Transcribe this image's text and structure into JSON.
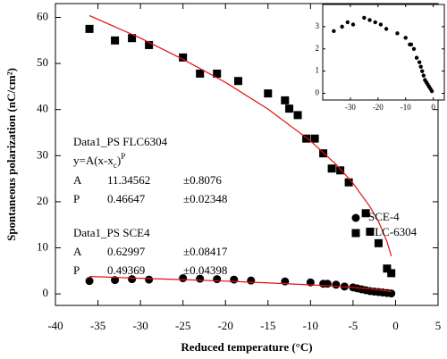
{
  "chart_data": [
    {
      "type": "scatter",
      "xlabel": "Reduced temperature (°C)",
      "ylabel": "Spontaneous polarization (nC/cm²)",
      "xlim": [
        -40,
        5
      ],
      "ylim": [
        -2.5,
        63
      ],
      "xticks": [
        -40,
        -35,
        -30,
        -25,
        -20,
        -15,
        -10,
        -5,
        0,
        5
      ],
      "yticks": [
        0,
        10,
        20,
        30,
        40,
        50,
        60
      ],
      "legend": "right",
      "series": [
        {
          "name": "SCE-4",
          "marker": "circle",
          "color": "#000000",
          "x": [
            -36,
            -33,
            -31,
            -29,
            -25,
            -23,
            -21,
            -19,
            -17,
            -13,
            -10,
            -8.5,
            -8,
            -7,
            -6,
            -5,
            -4.5,
            -4,
            -3.5,
            -3,
            -2.5,
            -2,
            -1.5,
            -1,
            -0.5
          ],
          "values": [
            2.8,
            3.0,
            3.2,
            3.1,
            3.4,
            3.3,
            3.2,
            3.1,
            2.9,
            2.7,
            2.5,
            2.2,
            2.2,
            2.0,
            1.6,
            1.4,
            1.2,
            1.0,
            0.8,
            0.6,
            0.5,
            0.4,
            0.3,
            0.2,
            0.1
          ]
        },
        {
          "name": "FLC-6304",
          "marker": "square",
          "color": "#000000",
          "x": [
            -36,
            -33,
            -31,
            -29,
            -25,
            -23,
            -21,
            -18.5,
            -15,
            -13,
            -12.5,
            -11.5,
            -10.5,
            -9.5,
            -8.5,
            -7.5,
            -6.5,
            -5.5,
            -3.5,
            -3,
            -2,
            -1,
            -0.5
          ],
          "values": [
            57.5,
            55,
            55.5,
            54,
            51.3,
            47.8,
            47.8,
            46.2,
            43.5,
            42,
            40.2,
            38.8,
            33.7,
            33.7,
            30.5,
            27.2,
            26.8,
            24.2,
            17.5,
            13.5,
            11,
            5.5,
            4.5
          ]
        },
        {
          "marker": "line",
          "color": "#e01010",
          "x": [
            -36,
            -30,
            -25,
            -20,
            -15,
            -10,
            -7,
            -5,
            -3,
            -2,
            -1,
            -0.5
          ],
          "values": [
            3.78,
            3.38,
            3.09,
            2.77,
            2.4,
            1.96,
            1.65,
            1.4,
            1.09,
            0.89,
            0.63,
            0.45
          ]
        },
        {
          "marker": "line",
          "color": "#e01010",
          "x": [
            -36,
            -30,
            -25,
            -20,
            -15,
            -10,
            -7,
            -5,
            -3,
            -2,
            -1,
            -0.5
          ],
          "values": [
            60.4,
            55.5,
            50.9,
            45.9,
            40.1,
            33.2,
            28.1,
            24.0,
            18.9,
            15.7,
            11.3,
            8.2
          ]
        }
      ],
      "fit_results": [
        {
          "title": "Data1_PS FLC6304",
          "formula": [
            "y=A(x-x",
            "c",
            ")",
            "P"
          ],
          "params": [
            [
              "A",
              "11.34562",
              "±0.8076"
            ],
            [
              "P",
              "0.46647",
              "±0.02348"
            ]
          ]
        },
        {
          "title": "Data1_PS SCE4",
          "params": [
            [
              "A",
              "0.62997",
              "±0.08417"
            ],
            [
              "P",
              "0.49369",
              "±0.04398"
            ]
          ]
        }
      ]
    },
    {
      "type": "scatter",
      "xlim": [
        -40,
        4
      ],
      "ylim": [
        -0.3,
        4
      ],
      "xticks": [
        -30,
        -20,
        -10,
        0
      ],
      "yticks": [
        0,
        1,
        2,
        3
      ],
      "series": [
        {
          "marker": "circle",
          "color": "#000000",
          "x": [
            -36,
            -33,
            -31,
            -29,
            -25,
            -23,
            -21,
            -19,
            -17,
            -13,
            -10,
            -8.5,
            -8,
            -7,
            -6,
            -5,
            -4.5,
            -4,
            -3.5,
            -3,
            -2.5,
            -2,
            -1.5,
            -1,
            -0.5
          ],
          "values": [
            2.8,
            3.0,
            3.2,
            3.1,
            3.4,
            3.3,
            3.2,
            3.1,
            2.9,
            2.7,
            2.5,
            2.2,
            2.2,
            2.0,
            1.6,
            1.4,
            1.2,
            1.0,
            0.8,
            0.6,
            0.5,
            0.4,
            0.3,
            0.2,
            0.1
          ]
        }
      ]
    }
  ]
}
